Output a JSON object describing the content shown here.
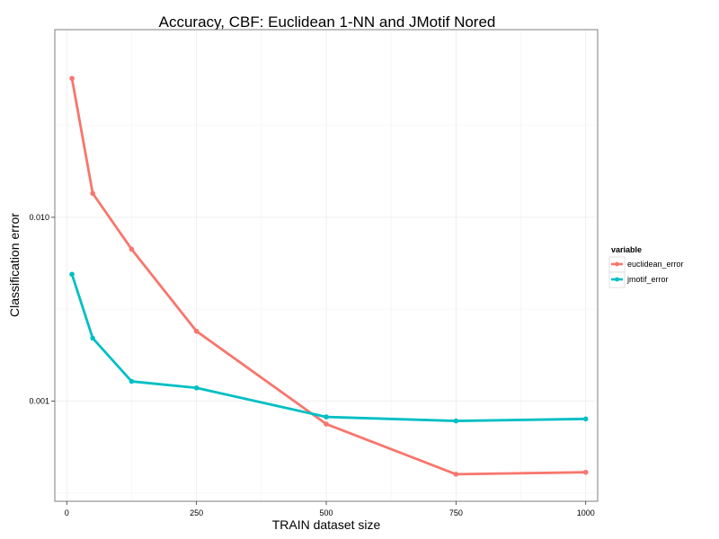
{
  "chart_data": {
    "type": "line",
    "title": "Accuracy, CBF: Euclidean 1-NN and JMotif Nored",
    "xlabel": "TRAIN dataset size",
    "ylabel": "Classification error",
    "x_scale": "linear",
    "y_scale": "log",
    "xlim": [
      -23,
      1023
    ],
    "ylim": [
      0.000285,
      0.105
    ],
    "x_ticks": [
      0,
      250,
      500,
      750,
      1000
    ],
    "x_tick_labels": [
      "0",
      "250",
      "500",
      "750",
      "1000"
    ],
    "y_ticks": [
      0.001,
      0.01
    ],
    "y_tick_labels": [
      "0.001",
      "0.010"
    ],
    "grid": true,
    "legend": {
      "title": "variable",
      "position": "right"
    },
    "x": [
      10,
      50,
      125,
      250,
      500,
      750,
      1000
    ],
    "series": [
      {
        "name": "euclidean_error",
        "color": "#F8766D",
        "values": [
          0.057,
          0.0135,
          0.0067,
          0.0024,
          0.00075,
          0.0004,
          0.00041
        ]
      },
      {
        "name": "jmotif_error",
        "color": "#00BFC4",
        "values": [
          0.0049,
          0.0022,
          0.00128,
          0.00118,
          0.00082,
          0.00078,
          0.0008
        ]
      }
    ]
  }
}
